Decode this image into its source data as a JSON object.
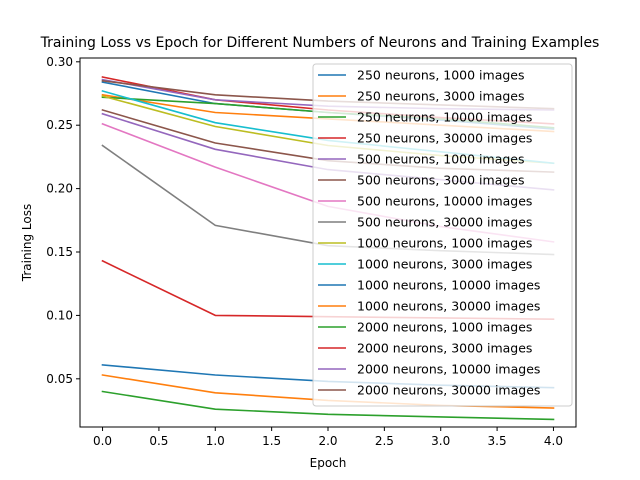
{
  "chart_data": {
    "type": "line",
    "title": "Training Loss vs Epoch for Different Numbers of Neurons and Training Examples",
    "xlabel": "Epoch",
    "ylabel": "Training Loss",
    "xlim": [
      -0.2,
      4.2
    ],
    "ylim": [
      0.012,
      0.303
    ],
    "x_ticks": [
      "0.0",
      "0.5",
      "1.0",
      "1.5",
      "2.0",
      "2.5",
      "3.0",
      "3.5",
      "4.0"
    ],
    "y_ticks": [
      "0.05",
      "0.10",
      "0.15",
      "0.20",
      "0.25",
      "0.30"
    ],
    "grid": false,
    "legend_position": "top-right",
    "x": [
      0,
      1,
      2,
      3,
      4
    ],
    "series": [
      {
        "name": "250 neurons, 1000 images",
        "color": "#1f77b4",
        "values": [
          0.284,
          0.267,
          0.26,
          0.254,
          0.247
        ]
      },
      {
        "name": "250 neurons, 3000 images",
        "color": "#ff7f0e",
        "values": [
          0.274,
          0.26,
          0.255,
          0.25,
          0.245
        ]
      },
      {
        "name": "250 neurons, 10000 images",
        "color": "#2ca02c",
        "values": [
          0.272,
          0.267,
          0.26,
          0.255,
          0.248
        ]
      },
      {
        "name": "250 neurons, 30000 images",
        "color": "#d62728",
        "values": [
          0.288,
          0.27,
          0.262,
          0.256,
          0.251
        ]
      },
      {
        "name": "500 neurons, 1000 images",
        "color": "#9467bd",
        "values": [
          0.259,
          0.231,
          0.215,
          0.207,
          0.199
        ]
      },
      {
        "name": "500 neurons, 3000 images",
        "color": "#8c564b",
        "values": [
          0.262,
          0.236,
          0.222,
          0.216,
          0.213
        ]
      },
      {
        "name": "500 neurons, 10000 images",
        "color": "#e377c2",
        "values": [
          0.251,
          0.217,
          0.186,
          0.17,
          0.158
        ]
      },
      {
        "name": "500 neurons, 30000 images",
        "color": "#7f7f7f",
        "values": [
          0.234,
          0.171,
          0.155,
          0.151,
          0.148
        ]
      },
      {
        "name": "1000 neurons, 1000 images",
        "color": "#bcbd22",
        "values": [
          0.273,
          0.249,
          0.234,
          0.226,
          0.22
        ]
      },
      {
        "name": "1000 neurons, 3000 images",
        "color": "#17becf",
        "values": [
          0.277,
          0.252,
          0.238,
          0.229,
          0.22
        ]
      },
      {
        "name": "1000 neurons, 10000 images",
        "color": "#1f77b4",
        "values": [
          0.061,
          0.053,
          0.048,
          0.045,
          0.043
        ]
      },
      {
        "name": "1000 neurons, 30000 images",
        "color": "#ff7f0e",
        "values": [
          0.053,
          0.039,
          0.033,
          0.029,
          0.027
        ]
      },
      {
        "name": "2000 neurons, 1000 images",
        "color": "#2ca02c",
        "values": [
          0.04,
          0.026,
          0.022,
          0.02,
          0.018
        ]
      },
      {
        "name": "2000 neurons, 3000 images",
        "color": "#d62728",
        "values": [
          0.143,
          0.1,
          0.099,
          0.098,
          0.097
        ]
      },
      {
        "name": "2000 neurons, 10000 images",
        "color": "#9467bd",
        "values": [
          0.286,
          0.27,
          0.265,
          0.263,
          0.262
        ]
      },
      {
        "name": "2000 neurons, 30000 images",
        "color": "#8c564b",
        "values": [
          0.285,
          0.274,
          0.269,
          0.266,
          0.263
        ]
      }
    ]
  }
}
